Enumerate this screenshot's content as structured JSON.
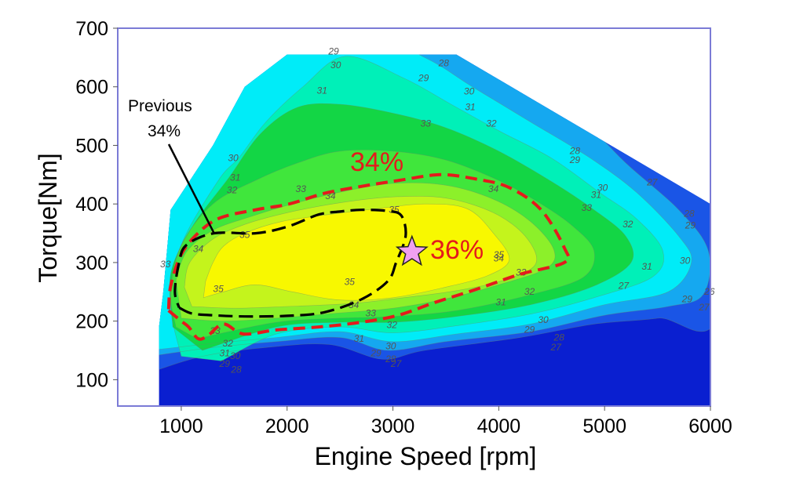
{
  "chart_data": {
    "type": "contour",
    "xlabel": "Engine Speed [rpm]",
    "ylabel": "Torque[Nm]",
    "xlim": [
      400,
      6000
    ],
    "ylim": [
      55,
      700
    ],
    "xticks": [
      1000,
      2000,
      3000,
      4000,
      5000,
      6000
    ],
    "yticks": [
      100,
      200,
      300,
      400,
      500,
      600,
      700
    ],
    "grid": false,
    "colors": {
      "frame": "#7b7bd6",
      "low": "#0a1fd0",
      "band1": "#1a55e6",
      "band2": "#15a8f0",
      "band3": "#00ecf8",
      "band4": "#00f0b8",
      "band5": "#13d645",
      "band6": "#40e63c",
      "band7": "#8cf02a",
      "band8": "#c4f41c",
      "peak": "#f8f800",
      "highlight_line": "#e41a1c",
      "previous_line": "#000000",
      "star": "#f0a0f0"
    },
    "envelope": [
      [
        790,
        55
      ],
      [
        790,
        190
      ],
      [
        830,
        250
      ],
      [
        900,
        390
      ],
      [
        1300,
        500
      ],
      [
        1600,
        600
      ],
      [
        2000,
        655
      ],
      [
        3600,
        655
      ],
      [
        6000,
        400
      ],
      [
        6000,
        55
      ]
    ],
    "contour_labels": [
      {
        "text": "26",
        "x": 5990,
        "y": 245
      },
      {
        "text": "27",
        "x": 5940,
        "y": 218
      },
      {
        "text": "27",
        "x": 5450,
        "y": 432
      },
      {
        "text": "27",
        "x": 5180,
        "y": 255
      },
      {
        "text": "27",
        "x": 3030,
        "y": 122
      },
      {
        "text": "27",
        "x": 4540,
        "y": 150
      },
      {
        "text": "28",
        "x": 3480,
        "y": 635
      },
      {
        "text": "28",
        "x": 5800,
        "y": 378
      },
      {
        "text": "28",
        "x": 4570,
        "y": 167
      },
      {
        "text": "28",
        "x": 4720,
        "y": 485
      },
      {
        "text": "28",
        "x": 1520,
        "y": 112
      },
      {
        "text": "28",
        "x": 2980,
        "y": 130
      },
      {
        "text": "29",
        "x": 2440,
        "y": 655
      },
      {
        "text": "29",
        "x": 3290,
        "y": 610
      },
      {
        "text": "29",
        "x": 4720,
        "y": 470
      },
      {
        "text": "29",
        "x": 5810,
        "y": 358
      },
      {
        "text": "29",
        "x": 5780,
        "y": 232
      },
      {
        "text": "29",
        "x": 4290,
        "y": 180
      },
      {
        "text": "29",
        "x": 2840,
        "y": 140
      },
      {
        "text": "29",
        "x": 1410,
        "y": 122
      },
      {
        "text": "30",
        "x": 2460,
        "y": 632
      },
      {
        "text": "30",
        "x": 3720,
        "y": 587
      },
      {
        "text": "30",
        "x": 1490,
        "y": 473
      },
      {
        "text": "30",
        "x": 4980,
        "y": 422
      },
      {
        "text": "30",
        "x": 5760,
        "y": 298
      },
      {
        "text": "30",
        "x": 4420,
        "y": 197
      },
      {
        "text": "30",
        "x": 2980,
        "y": 152
      },
      {
        "text": "30",
        "x": 1510,
        "y": 135
      },
      {
        "text": "31",
        "x": 2330,
        "y": 588
      },
      {
        "text": "31",
        "x": 3730,
        "y": 560
      },
      {
        "text": "31",
        "x": 1510,
        "y": 440
      },
      {
        "text": "31",
        "x": 4920,
        "y": 410
      },
      {
        "text": "31",
        "x": 5400,
        "y": 288
      },
      {
        "text": "31",
        "x": 4020,
        "y": 227
      },
      {
        "text": "31",
        "x": 2680,
        "y": 165
      },
      {
        "text": "31",
        "x": 1410,
        "y": 140
      },
      {
        "text": "32",
        "x": 3930,
        "y": 532
      },
      {
        "text": "32",
        "x": 1480,
        "y": 418
      },
      {
        "text": "32",
        "x": 5220,
        "y": 360
      },
      {
        "text": "32",
        "x": 4290,
        "y": 245
      },
      {
        "text": "32",
        "x": 2990,
        "y": 188
      },
      {
        "text": "32",
        "x": 1440,
        "y": 157
      },
      {
        "text": "33",
        "x": 3310,
        "y": 532
      },
      {
        "text": "33",
        "x": 2130,
        "y": 420
      },
      {
        "text": "33",
        "x": 4830,
        "y": 388
      },
      {
        "text": "33",
        "x": 4210,
        "y": 278
      },
      {
        "text": "33",
        "x": 2790,
        "y": 208
      },
      {
        "text": "33",
        "x": 1320,
        "y": 178
      },
      {
        "text": "33",
        "x": 850,
        "y": 292
      },
      {
        "text": "34",
        "x": 2410,
        "y": 408
      },
      {
        "text": "34",
        "x": 3950,
        "y": 420
      },
      {
        "text": "34",
        "x": 4000,
        "y": 302
      },
      {
        "text": "34",
        "x": 2630,
        "y": 222
      },
      {
        "text": "34",
        "x": 1160,
        "y": 318
      },
      {
        "text": "35",
        "x": 3010,
        "y": 385
      },
      {
        "text": "35",
        "x": 1600,
        "y": 342
      },
      {
        "text": "35",
        "x": 4000,
        "y": 308
      },
      {
        "text": "35",
        "x": 2590,
        "y": 262
      },
      {
        "text": "35",
        "x": 1350,
        "y": 250
      }
    ],
    "annotations": {
      "highlight_label": "34%",
      "peak_label": "36%",
      "previous_label_line1": "Previous",
      "previous_label_line2": "34%"
    },
    "highlight_contour": [
      [
        880,
        218
      ],
      [
        1000,
        200
      ],
      [
        1070,
        190
      ],
      [
        1160,
        170
      ],
      [
        1250,
        175
      ],
      [
        1400,
        195
      ],
      [
        1590,
        178
      ],
      [
        1900,
        185
      ],
      [
        2300,
        190
      ],
      [
        2700,
        198
      ],
      [
        3050,
        210
      ],
      [
        3400,
        232
      ],
      [
        3800,
        255
      ],
      [
        4200,
        280
      ],
      [
        4620,
        300
      ],
      [
        4620,
        325
      ],
      [
        4400,
        390
      ],
      [
        4100,
        428
      ],
      [
        3800,
        442
      ],
      [
        3450,
        450
      ],
      [
        3050,
        440
      ],
      [
        2700,
        430
      ],
      [
        2350,
        418
      ],
      [
        2020,
        400
      ],
      [
        1700,
        390
      ],
      [
        1350,
        375
      ],
      [
        1130,
        345
      ],
      [
        990,
        310
      ],
      [
        900,
        260
      ],
      [
        880,
        218
      ]
    ],
    "previous_contour": [
      [
        980,
        223
      ],
      [
        1100,
        213
      ],
      [
        1300,
        210
      ],
      [
        1600,
        208
      ],
      [
        2000,
        209
      ],
      [
        2350,
        215
      ],
      [
        2700,
        237
      ],
      [
        2950,
        268
      ],
      [
        3030,
        300
      ],
      [
        3120,
        345
      ],
      [
        3080,
        380
      ],
      [
        2950,
        388
      ],
      [
        2700,
        390
      ],
      [
        2500,
        387
      ],
      [
        2300,
        382
      ],
      [
        2000,
        361
      ],
      [
        1700,
        350
      ],
      [
        1310,
        350
      ],
      [
        1050,
        330
      ],
      [
        980,
        300
      ],
      [
        940,
        250
      ],
      [
        980,
        223
      ]
    ],
    "star": {
      "x": 3180,
      "y": 318
    }
  }
}
